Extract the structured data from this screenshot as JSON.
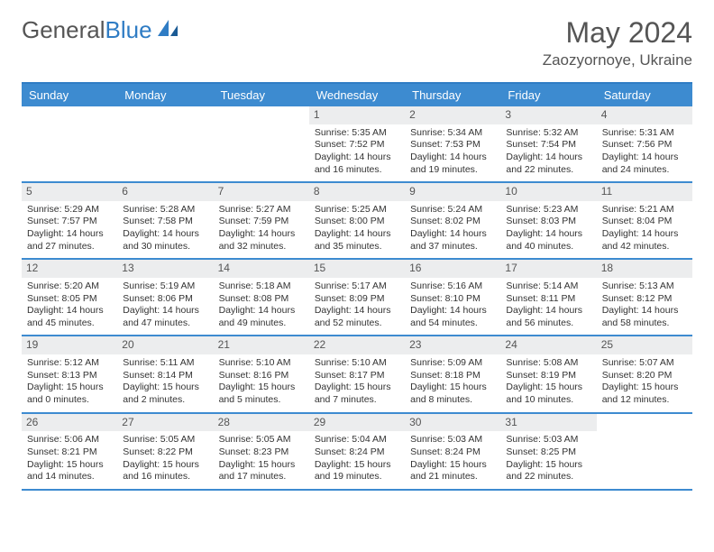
{
  "brand": {
    "part1": "General",
    "part2": "Blue"
  },
  "title": "May 2024",
  "location": "Zaozyornoye, Ukraine",
  "colors": {
    "header_bg": "#3d8bd0",
    "border": "#3d8bd0",
    "daynum_bg": "#ecedee",
    "text": "#333333",
    "title": "#555555"
  },
  "day_headers": [
    "Sunday",
    "Monday",
    "Tuesday",
    "Wednesday",
    "Thursday",
    "Friday",
    "Saturday"
  ],
  "weeks": [
    [
      {
        "empty": true
      },
      {
        "empty": true
      },
      {
        "empty": true
      },
      {
        "n": "1",
        "sr": "5:35 AM",
        "ss": "7:52 PM",
        "dh": 14,
        "dm": 16
      },
      {
        "n": "2",
        "sr": "5:34 AM",
        "ss": "7:53 PM",
        "dh": 14,
        "dm": 19
      },
      {
        "n": "3",
        "sr": "5:32 AM",
        "ss": "7:54 PM",
        "dh": 14,
        "dm": 22
      },
      {
        "n": "4",
        "sr": "5:31 AM",
        "ss": "7:56 PM",
        "dh": 14,
        "dm": 24
      }
    ],
    [
      {
        "n": "5",
        "sr": "5:29 AM",
        "ss": "7:57 PM",
        "dh": 14,
        "dm": 27
      },
      {
        "n": "6",
        "sr": "5:28 AM",
        "ss": "7:58 PM",
        "dh": 14,
        "dm": 30
      },
      {
        "n": "7",
        "sr": "5:27 AM",
        "ss": "7:59 PM",
        "dh": 14,
        "dm": 32
      },
      {
        "n": "8",
        "sr": "5:25 AM",
        "ss": "8:00 PM",
        "dh": 14,
        "dm": 35
      },
      {
        "n": "9",
        "sr": "5:24 AM",
        "ss": "8:02 PM",
        "dh": 14,
        "dm": 37
      },
      {
        "n": "10",
        "sr": "5:23 AM",
        "ss": "8:03 PM",
        "dh": 14,
        "dm": 40
      },
      {
        "n": "11",
        "sr": "5:21 AM",
        "ss": "8:04 PM",
        "dh": 14,
        "dm": 42
      }
    ],
    [
      {
        "n": "12",
        "sr": "5:20 AM",
        "ss": "8:05 PM",
        "dh": 14,
        "dm": 45
      },
      {
        "n": "13",
        "sr": "5:19 AM",
        "ss": "8:06 PM",
        "dh": 14,
        "dm": 47
      },
      {
        "n": "14",
        "sr": "5:18 AM",
        "ss": "8:08 PM",
        "dh": 14,
        "dm": 49
      },
      {
        "n": "15",
        "sr": "5:17 AM",
        "ss": "8:09 PM",
        "dh": 14,
        "dm": 52
      },
      {
        "n": "16",
        "sr": "5:16 AM",
        "ss": "8:10 PM",
        "dh": 14,
        "dm": 54
      },
      {
        "n": "17",
        "sr": "5:14 AM",
        "ss": "8:11 PM",
        "dh": 14,
        "dm": 56
      },
      {
        "n": "18",
        "sr": "5:13 AM",
        "ss": "8:12 PM",
        "dh": 14,
        "dm": 58
      }
    ],
    [
      {
        "n": "19",
        "sr": "5:12 AM",
        "ss": "8:13 PM",
        "dh": 15,
        "dm": 0
      },
      {
        "n": "20",
        "sr": "5:11 AM",
        "ss": "8:14 PM",
        "dh": 15,
        "dm": 2
      },
      {
        "n": "21",
        "sr": "5:10 AM",
        "ss": "8:16 PM",
        "dh": 15,
        "dm": 5
      },
      {
        "n": "22",
        "sr": "5:10 AM",
        "ss": "8:17 PM",
        "dh": 15,
        "dm": 7
      },
      {
        "n": "23",
        "sr": "5:09 AM",
        "ss": "8:18 PM",
        "dh": 15,
        "dm": 8
      },
      {
        "n": "24",
        "sr": "5:08 AM",
        "ss": "8:19 PM",
        "dh": 15,
        "dm": 10
      },
      {
        "n": "25",
        "sr": "5:07 AM",
        "ss": "8:20 PM",
        "dh": 15,
        "dm": 12
      }
    ],
    [
      {
        "n": "26",
        "sr": "5:06 AM",
        "ss": "8:21 PM",
        "dh": 15,
        "dm": 14
      },
      {
        "n": "27",
        "sr": "5:05 AM",
        "ss": "8:22 PM",
        "dh": 15,
        "dm": 16
      },
      {
        "n": "28",
        "sr": "5:05 AM",
        "ss": "8:23 PM",
        "dh": 15,
        "dm": 17
      },
      {
        "n": "29",
        "sr": "5:04 AM",
        "ss": "8:24 PM",
        "dh": 15,
        "dm": 19
      },
      {
        "n": "30",
        "sr": "5:03 AM",
        "ss": "8:24 PM",
        "dh": 15,
        "dm": 21
      },
      {
        "n": "31",
        "sr": "5:03 AM",
        "ss": "8:25 PM",
        "dh": 15,
        "dm": 22
      },
      {
        "empty": true
      }
    ]
  ],
  "labels": {
    "sunrise": "Sunrise:",
    "sunset": "Sunset:",
    "daylight": "Daylight:",
    "hours": "hours",
    "and": "and",
    "minutes": "minutes."
  }
}
